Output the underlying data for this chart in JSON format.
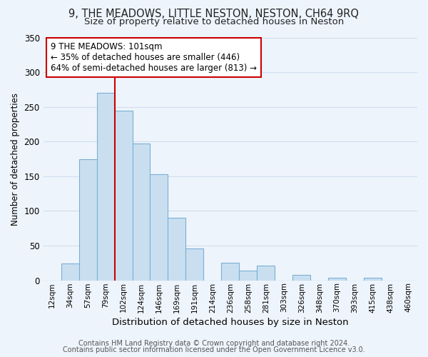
{
  "title": "9, THE MEADOWS, LITTLE NESTON, NESTON, CH64 9RQ",
  "subtitle": "Size of property relative to detached houses in Neston",
  "xlabel": "Distribution of detached houses by size in Neston",
  "ylabel": "Number of detached properties",
  "bar_labels": [
    "12sqm",
    "34sqm",
    "57sqm",
    "79sqm",
    "102sqm",
    "124sqm",
    "146sqm",
    "169sqm",
    "191sqm",
    "214sqm",
    "236sqm",
    "258sqm",
    "281sqm",
    "303sqm",
    "326sqm",
    "348sqm",
    "370sqm",
    "393sqm",
    "415sqm",
    "438sqm",
    "460sqm"
  ],
  "bar_values": [
    0,
    24,
    175,
    270,
    245,
    197,
    153,
    90,
    46,
    0,
    25,
    14,
    21,
    0,
    8,
    0,
    4,
    0,
    4,
    0,
    0
  ],
  "bar_color": "#c9dff0",
  "bar_edge_color": "#7bafd4",
  "vline_x": 3.5,
  "vline_color": "#cc0000",
  "annotation_text": "9 THE MEADOWS: 101sqm\n← 35% of detached houses are smaller (446)\n64% of semi-detached houses are larger (813) →",
  "ylim": [
    0,
    350
  ],
  "yticks": [
    0,
    50,
    100,
    150,
    200,
    250,
    300,
    350
  ],
  "background_color": "#eef4fb",
  "grid_color": "#d0dff0",
  "footer_line1": "Contains HM Land Registry data © Crown copyright and database right 2024.",
  "footer_line2": "Contains public sector information licensed under the Open Government Licence v3.0.",
  "title_fontsize": 10.5,
  "subtitle_fontsize": 9.5,
  "annotation_fontsize": 8.5,
  "footer_fontsize": 7.0,
  "ylabel_fontsize": 8.5,
  "xlabel_fontsize": 9.5
}
